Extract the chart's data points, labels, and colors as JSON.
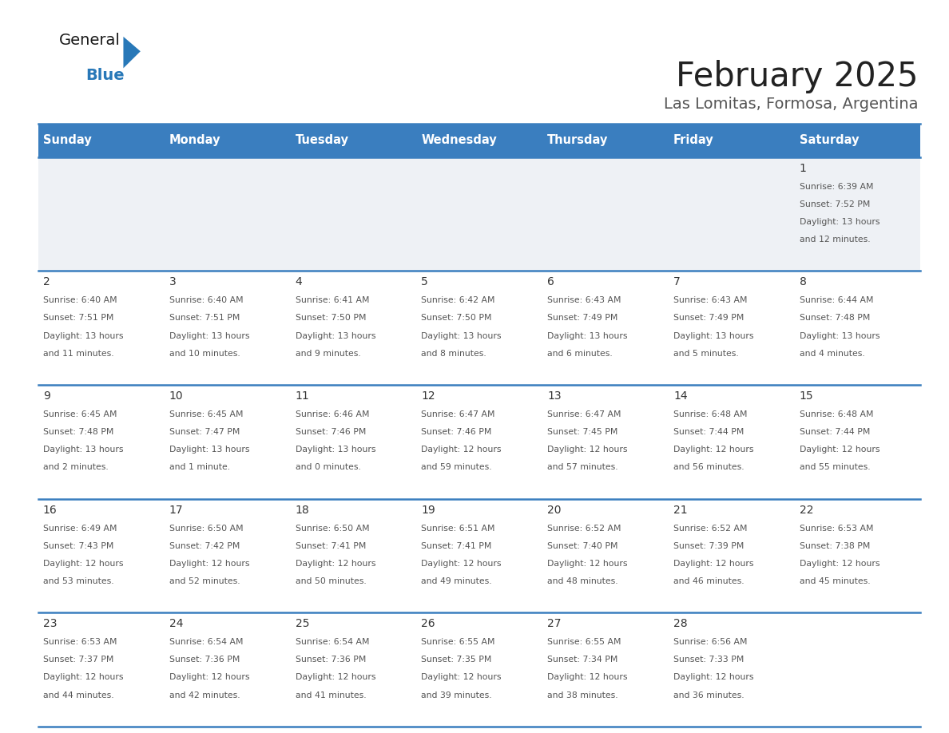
{
  "title": "February 2025",
  "subtitle": "Las Lomitas, Formosa, Argentina",
  "header_bg": "#3a7ebf",
  "header_text_color": "#ffffff",
  "cell_bg_first_row": "#eef1f5",
  "cell_bg_white": "#ffffff",
  "border_color": "#3a7ebf",
  "day_number_color": "#333333",
  "cell_text_color": "#555555",
  "title_color": "#222222",
  "subtitle_color": "#555555",
  "weekdays": [
    "Sunday",
    "Monday",
    "Tuesday",
    "Wednesday",
    "Thursday",
    "Friday",
    "Saturday"
  ],
  "days_data": [
    {
      "day": 1,
      "col": 6,
      "row": 0,
      "sunrise": "6:39 AM",
      "sunset": "7:52 PM",
      "daylight": "13 hours and 12 minutes."
    },
    {
      "day": 2,
      "col": 0,
      "row": 1,
      "sunrise": "6:40 AM",
      "sunset": "7:51 PM",
      "daylight": "13 hours and 11 minutes."
    },
    {
      "day": 3,
      "col": 1,
      "row": 1,
      "sunrise": "6:40 AM",
      "sunset": "7:51 PM",
      "daylight": "13 hours and 10 minutes."
    },
    {
      "day": 4,
      "col": 2,
      "row": 1,
      "sunrise": "6:41 AM",
      "sunset": "7:50 PM",
      "daylight": "13 hours and 9 minutes."
    },
    {
      "day": 5,
      "col": 3,
      "row": 1,
      "sunrise": "6:42 AM",
      "sunset": "7:50 PM",
      "daylight": "13 hours and 8 minutes."
    },
    {
      "day": 6,
      "col": 4,
      "row": 1,
      "sunrise": "6:43 AM",
      "sunset": "7:49 PM",
      "daylight": "13 hours and 6 minutes."
    },
    {
      "day": 7,
      "col": 5,
      "row": 1,
      "sunrise": "6:43 AM",
      "sunset": "7:49 PM",
      "daylight": "13 hours and 5 minutes."
    },
    {
      "day": 8,
      "col": 6,
      "row": 1,
      "sunrise": "6:44 AM",
      "sunset": "7:48 PM",
      "daylight": "13 hours and 4 minutes."
    },
    {
      "day": 9,
      "col": 0,
      "row": 2,
      "sunrise": "6:45 AM",
      "sunset": "7:48 PM",
      "daylight": "13 hours and 2 minutes."
    },
    {
      "day": 10,
      "col": 1,
      "row": 2,
      "sunrise": "6:45 AM",
      "sunset": "7:47 PM",
      "daylight": "13 hours and 1 minute."
    },
    {
      "day": 11,
      "col": 2,
      "row": 2,
      "sunrise": "6:46 AM",
      "sunset": "7:46 PM",
      "daylight": "13 hours and 0 minutes."
    },
    {
      "day": 12,
      "col": 3,
      "row": 2,
      "sunrise": "6:47 AM",
      "sunset": "7:46 PM",
      "daylight": "12 hours and 59 minutes."
    },
    {
      "day": 13,
      "col": 4,
      "row": 2,
      "sunrise": "6:47 AM",
      "sunset": "7:45 PM",
      "daylight": "12 hours and 57 minutes."
    },
    {
      "day": 14,
      "col": 5,
      "row": 2,
      "sunrise": "6:48 AM",
      "sunset": "7:44 PM",
      "daylight": "12 hours and 56 minutes."
    },
    {
      "day": 15,
      "col": 6,
      "row": 2,
      "sunrise": "6:48 AM",
      "sunset": "7:44 PM",
      "daylight": "12 hours and 55 minutes."
    },
    {
      "day": 16,
      "col": 0,
      "row": 3,
      "sunrise": "6:49 AM",
      "sunset": "7:43 PM",
      "daylight": "12 hours and 53 minutes."
    },
    {
      "day": 17,
      "col": 1,
      "row": 3,
      "sunrise": "6:50 AM",
      "sunset": "7:42 PM",
      "daylight": "12 hours and 52 minutes."
    },
    {
      "day": 18,
      "col": 2,
      "row": 3,
      "sunrise": "6:50 AM",
      "sunset": "7:41 PM",
      "daylight": "12 hours and 50 minutes."
    },
    {
      "day": 19,
      "col": 3,
      "row": 3,
      "sunrise": "6:51 AM",
      "sunset": "7:41 PM",
      "daylight": "12 hours and 49 minutes."
    },
    {
      "day": 20,
      "col": 4,
      "row": 3,
      "sunrise": "6:52 AM",
      "sunset": "7:40 PM",
      "daylight": "12 hours and 48 minutes."
    },
    {
      "day": 21,
      "col": 5,
      "row": 3,
      "sunrise": "6:52 AM",
      "sunset": "7:39 PM",
      "daylight": "12 hours and 46 minutes."
    },
    {
      "day": 22,
      "col": 6,
      "row": 3,
      "sunrise": "6:53 AM",
      "sunset": "7:38 PM",
      "daylight": "12 hours and 45 minutes."
    },
    {
      "day": 23,
      "col": 0,
      "row": 4,
      "sunrise": "6:53 AM",
      "sunset": "7:37 PM",
      "daylight": "12 hours and 44 minutes."
    },
    {
      "day": 24,
      "col": 1,
      "row": 4,
      "sunrise": "6:54 AM",
      "sunset": "7:36 PM",
      "daylight": "12 hours and 42 minutes."
    },
    {
      "day": 25,
      "col": 2,
      "row": 4,
      "sunrise": "6:54 AM",
      "sunset": "7:36 PM",
      "daylight": "12 hours and 41 minutes."
    },
    {
      "day": 26,
      "col": 3,
      "row": 4,
      "sunrise": "6:55 AM",
      "sunset": "7:35 PM",
      "daylight": "12 hours and 39 minutes."
    },
    {
      "day": 27,
      "col": 4,
      "row": 4,
      "sunrise": "6:55 AM",
      "sunset": "7:34 PM",
      "daylight": "12 hours and 38 minutes."
    },
    {
      "day": 28,
      "col": 5,
      "row": 4,
      "sunrise": "6:56 AM",
      "sunset": "7:33 PM",
      "daylight": "12 hours and 36 minutes."
    }
  ],
  "logo_general_color": "#1a1a1a",
  "logo_blue_color": "#2878b8",
  "logo_triangle_color": "#2878b8",
  "fig_width": 11.88,
  "fig_height": 9.18
}
